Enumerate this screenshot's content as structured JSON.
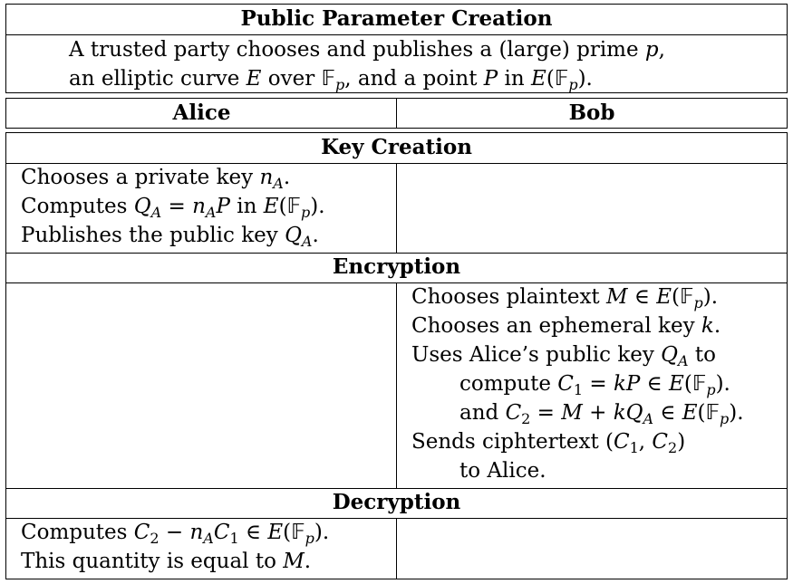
{
  "public": {
    "title": "Public Parameter Creation",
    "lines": [
      "A trusted party chooses and publishes a (large) prime p,",
      "an elliptic curve E over 𝔽ₚ, and a point P in E(𝔽ₚ)."
    ]
  },
  "columns": {
    "alice": "Alice",
    "bob": "Bob"
  },
  "key_creation": {
    "title": "Key Creation",
    "alice": [
      "Chooses a private key n_A.",
      "Computes Q_A = n_A P in E(𝔽ₚ).",
      "Publishes the public key Q_A."
    ]
  },
  "encryption": {
    "title": "Encryption",
    "bob": [
      "Chooses plaintext M ∈ E(𝔽ₚ).",
      "Chooses an ephemeral key k.",
      "Uses Alice’s public key Q_A to",
      "compute C₁ = kP ∈ E(𝔽ₚ).",
      "and C₂ = M + kQ_A ∈ E(𝔽ₚ).",
      "Sends ciphtertext (C₁, C₂)",
      "to Alice."
    ]
  },
  "decryption": {
    "title": "Decryption",
    "alice": [
      "Computes C₂ − n_A C₁ ∈ E(𝔽ₚ).",
      "This quantity is equal to M."
    ]
  }
}
